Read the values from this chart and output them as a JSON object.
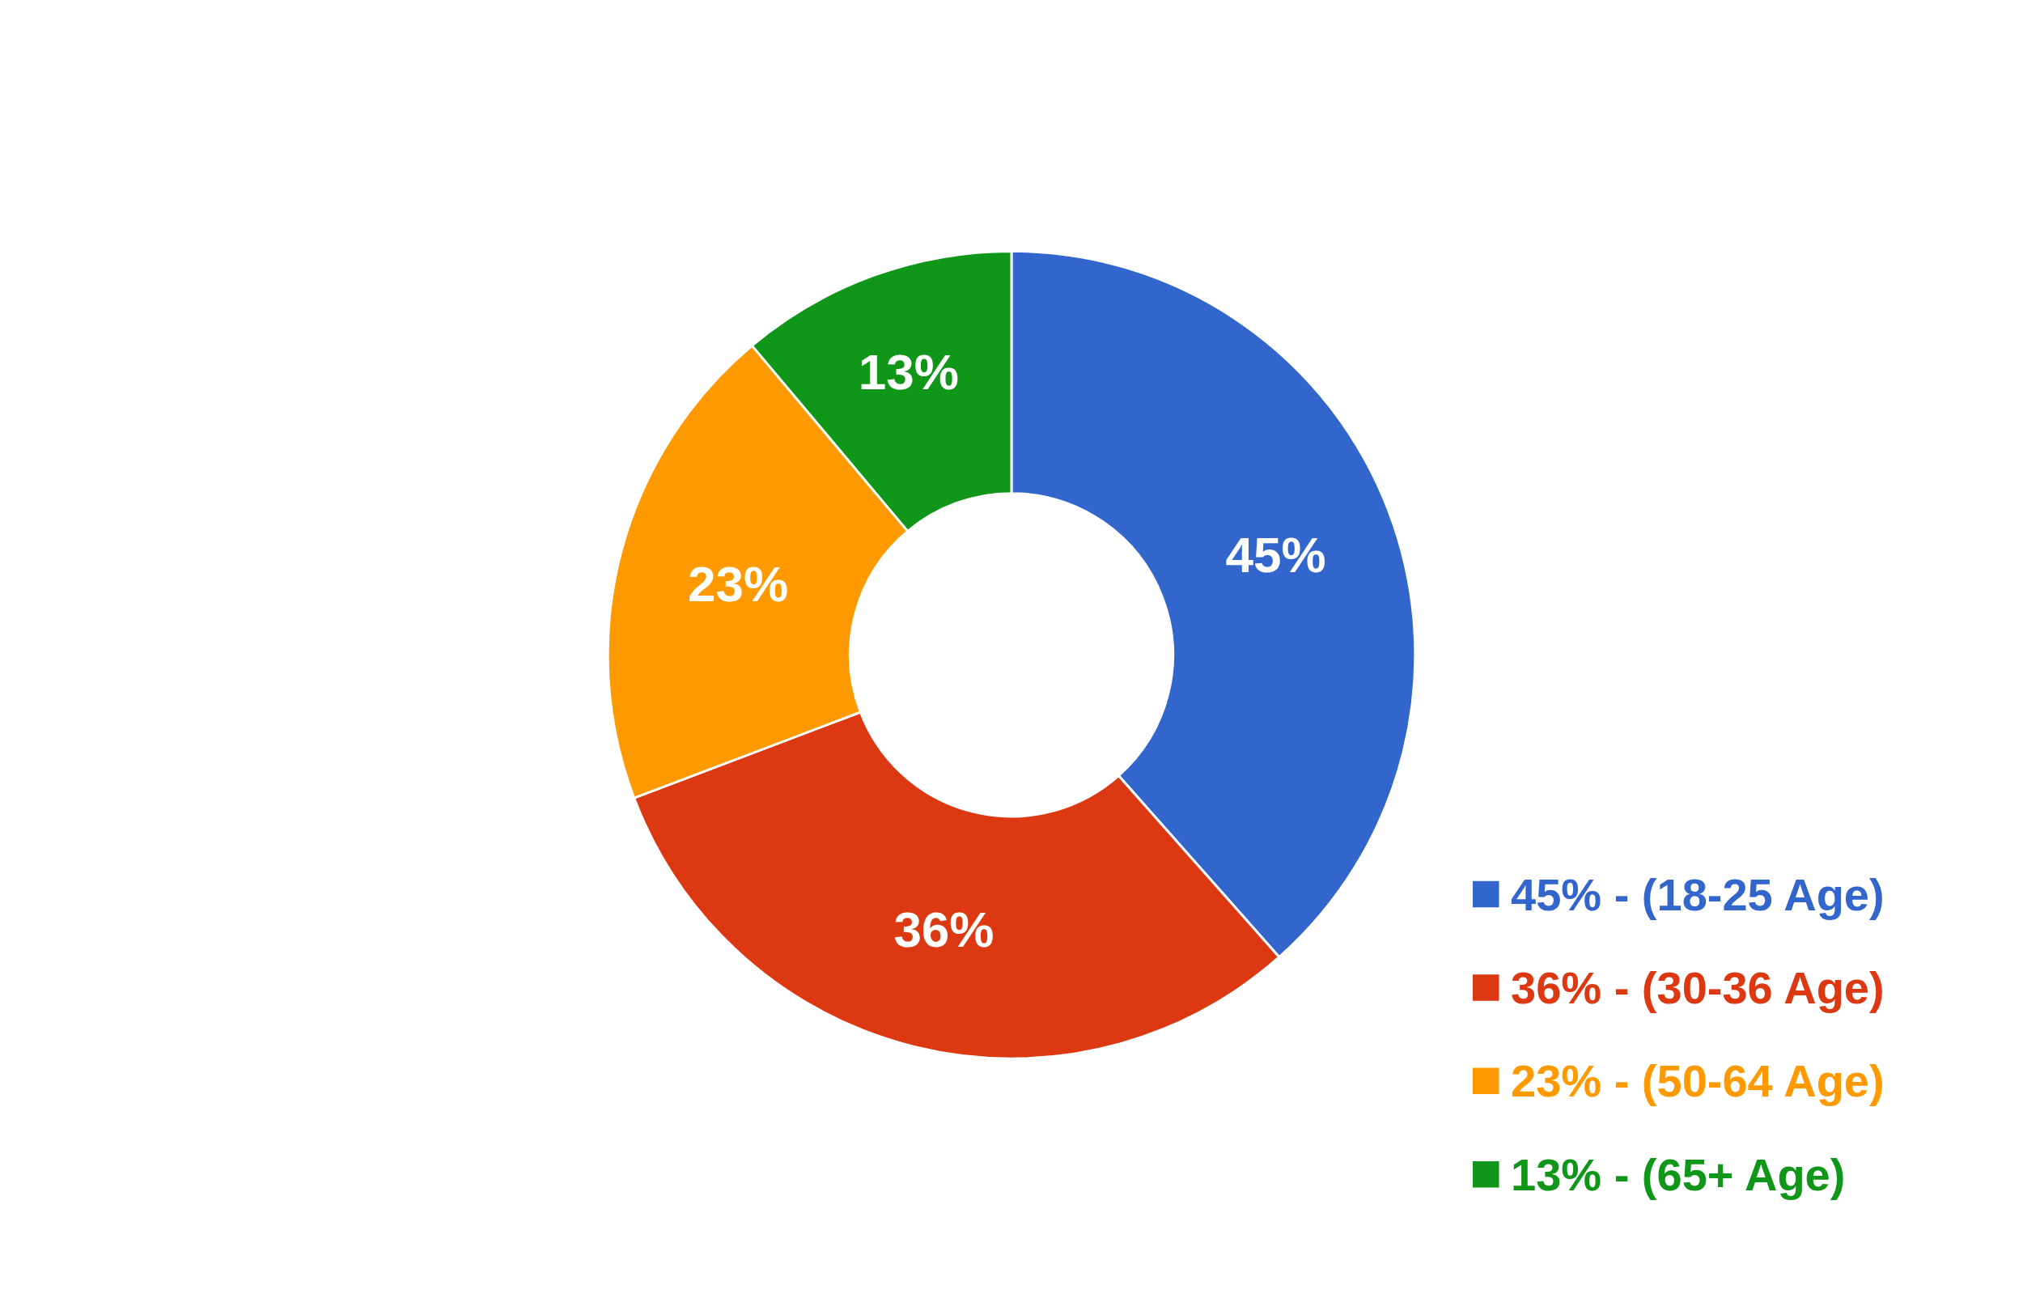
{
  "chart_data": {
    "type": "donut",
    "categories": [
      "45% - (18-25 Age)",
      "36% - (30-36 Age)",
      "23% - (50-64 Age)",
      "13% - (65+ Age)"
    ],
    "values": [
      45,
      36,
      23,
      13
    ],
    "value_labels": [
      "45%",
      "36%",
      "23%",
      "13%"
    ],
    "colors": [
      "#3366cc",
      "#dc3912",
      "#ff9900",
      "#109618"
    ],
    "legend": "bottom right"
  }
}
